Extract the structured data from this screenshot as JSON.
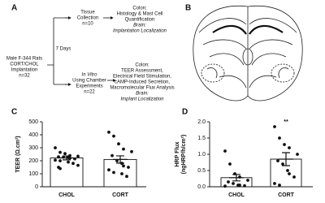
{
  "panel_labels": [
    "A",
    "B",
    "C",
    "D"
  ],
  "flowchart": {
    "start": [
      "Male F-344 Rats",
      "CORT/CHOL",
      "Implantation",
      "n=32"
    ],
    "interval": "7 Days",
    "top_step": [
      "Tissue",
      "Collection",
      "n=10"
    ],
    "top_result": [
      "Colon:",
      "Histology & Mast Cell",
      "Quantification",
      "Brain:",
      "Implantation Localization"
    ],
    "bottom_step": [
      "In Vitro",
      "Using Chamber",
      "Experiments",
      "n=22"
    ],
    "bottom_result": [
      "Colon:",
      "TEER Assessment,",
      "Electrical Field Stimulation,",
      "cAMP-Induced Secretion,",
      "Macromolecular Flux Analysis",
      "Brain:",
      "Implant Localization"
    ]
  },
  "chart_data": [
    {
      "type": "bar",
      "ylabel": [
        "TEER (Ω.cm²)"
      ],
      "categories": [
        "CHOL",
        "CORT"
      ],
      "values": [
        222,
        210
      ],
      "errors": [
        15,
        28
      ],
      "points": [
        [
          300,
          265,
          255,
          240,
          235,
          230,
          228,
          225,
          220,
          215,
          205,
          200,
          190,
          180,
          165,
          150,
          140
        ],
        [
          420,
          390,
          330,
          290,
          270,
          240,
          200,
          180,
          160,
          150,
          130,
          110,
          100,
          80
        ]
      ],
      "annotations": [
        null,
        null
      ],
      "ylim": [
        0,
        500
      ],
      "yticks": [
        0,
        100,
        200,
        300,
        400,
        500
      ]
    },
    {
      "type": "bar",
      "ylabel": [
        "HRP Flux",
        "(ngHRP/h/cm²)"
      ],
      "categories": [
        "CHOL",
        "CORT"
      ],
      "values": [
        0.28,
        0.85
      ],
      "errors": [
        0.1,
        0.2
      ],
      "points": [
        [
          1.1,
          0.7,
          0.4,
          0.3,
          0.2,
          0.15,
          0.1,
          0.05,
          0.05,
          0.03,
          0.02
        ],
        [
          1.85,
          1.5,
          1.3,
          1.2,
          1.0,
          0.8,
          0.7,
          0.5,
          0.4,
          0.3,
          0.1,
          0.05
        ]
      ],
      "annotations": [
        null,
        "**"
      ],
      "ylim": [
        0,
        2
      ],
      "yticks": [
        {
          "value": 0,
          "label": "0.0"
        },
        0.5,
        {
          "value": 1,
          "label": "1.0"
        },
        1.5,
        {
          "value": 2,
          "label": "2.0"
        }
      ]
    }
  ]
}
